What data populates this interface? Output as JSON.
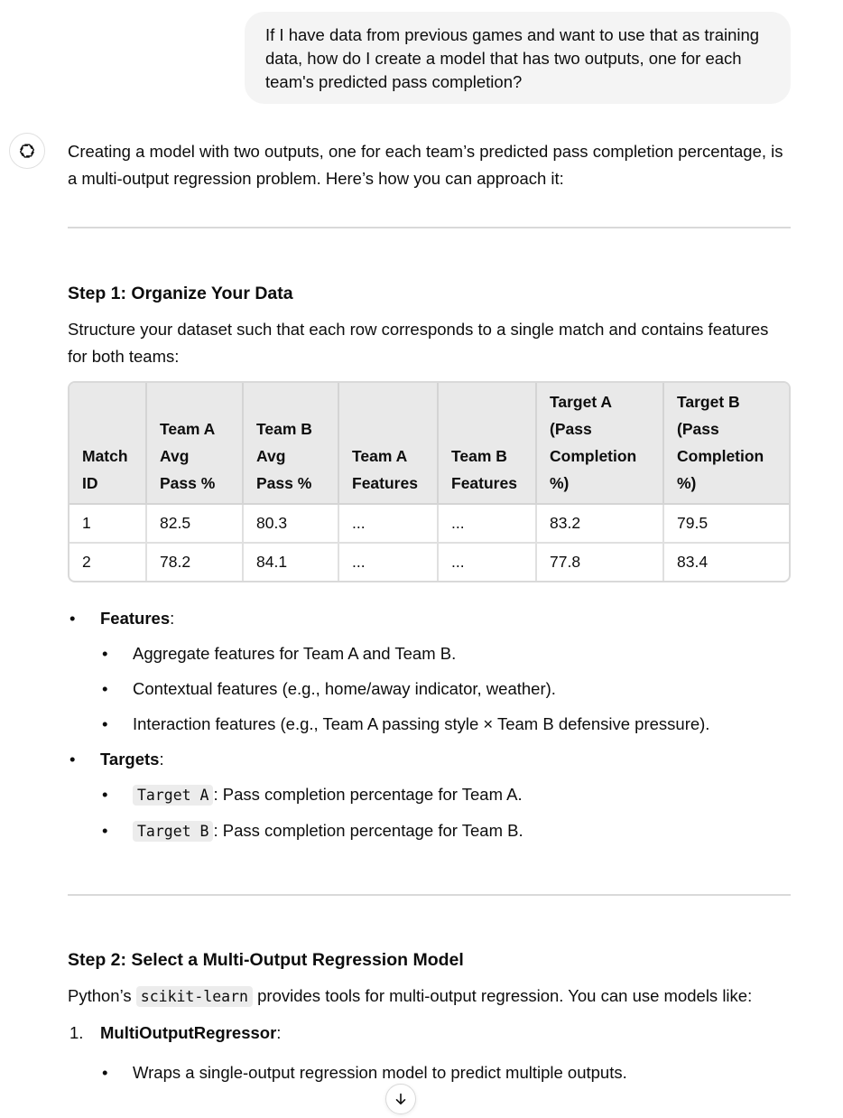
{
  "user_message": "If I have data from previous games and want to use that as training data, how do I create a model that has two outputs, one for each team's predicted pass completion?",
  "assistant": {
    "intro": "Creating a model with two outputs, one for each team’s predicted pass completion percentage, is a multi-output regression problem. Here’s how you can approach it:",
    "step1": {
      "heading": "Step 1: Organize Your Data",
      "text": "Structure your dataset such that each row corresponds to a single match and contains features for both teams:",
      "table": {
        "headers": [
          "Match ID",
          "Team A Avg Pass %",
          "Team B Avg Pass %",
          "Team A Features",
          "Team B Features",
          "Target A (Pass Completion %)",
          "Target B (Pass Completion %)"
        ],
        "rows": [
          [
            "1",
            "82.5",
            "80.3",
            "...",
            "...",
            "83.2",
            "79.5"
          ],
          [
            "2",
            "78.2",
            "84.1",
            "...",
            "...",
            "77.8",
            "83.4"
          ]
        ]
      },
      "features_label": "Features",
      "features": [
        "Aggregate features for Team A and Team B.",
        "Contextual features (e.g., home/away indicator, weather).",
        "Interaction features (e.g., Team A passing style × Team B defensive pressure)."
      ],
      "targets_label": "Targets",
      "targets": [
        {
          "code": "Target A",
          "text": ": Pass completion percentage for Team A."
        },
        {
          "code": "Target B",
          "text": ": Pass completion percentage for Team B."
        }
      ]
    },
    "step2": {
      "heading": "Step 2: Select a Multi-Output Regression Model",
      "text_before": "Python’s ",
      "code": "scikit-learn",
      "text_after": " provides tools for multi-output regression. You can use models like:",
      "items": [
        {
          "number": "1.",
          "label": "MultiOutputRegressor",
          "sub": [
            "Wraps a single-output regression model to predict multiple outputs."
          ]
        }
      ]
    }
  },
  "icons": {
    "assistant_avatar": "openai-logo-icon",
    "scroll": "arrow-down-icon"
  },
  "colors": {
    "user_bubble": "#f4f4f4",
    "table_header": "#e9e9e9",
    "divider": "#d9d9d9",
    "code_bg": "#ececec"
  }
}
